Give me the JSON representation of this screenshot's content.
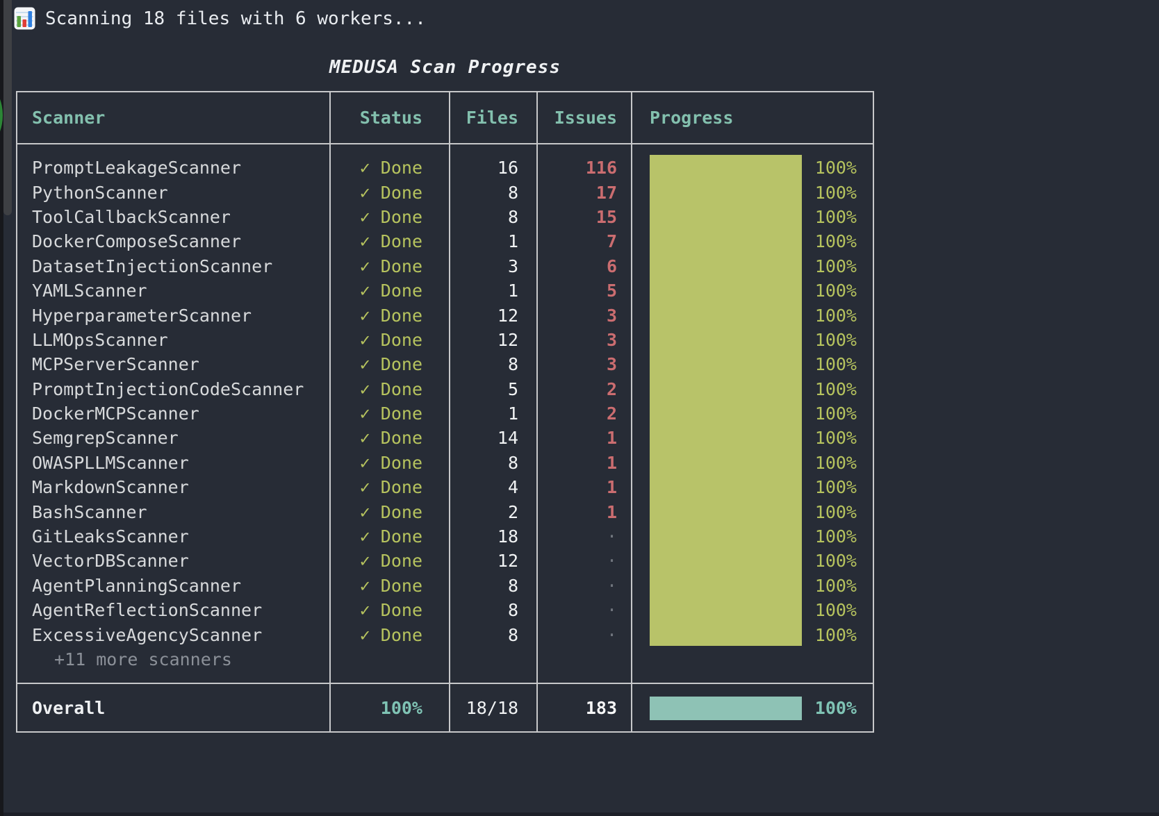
{
  "window": {
    "status_line": "Scanning 18 files with 6 workers...",
    "icon": "bar-chart-icon"
  },
  "title": "MEDUSA Scan Progress",
  "table": {
    "columns": {
      "scanner": "Scanner",
      "status": "Status",
      "files": "Files",
      "issues": "Issues",
      "progress": "Progress"
    },
    "rows": [
      {
        "scanner": "PromptLeakageScanner",
        "status": "✓ Done",
        "files": "16",
        "issues": "116",
        "progress": "100%"
      },
      {
        "scanner": "PythonScanner",
        "status": "✓ Done",
        "files": "8",
        "issues": "17",
        "progress": "100%"
      },
      {
        "scanner": "ToolCallbackScanner",
        "status": "✓ Done",
        "files": "8",
        "issues": "15",
        "progress": "100%"
      },
      {
        "scanner": "DockerComposeScanner",
        "status": "✓ Done",
        "files": "1",
        "issues": "7",
        "progress": "100%"
      },
      {
        "scanner": "DatasetInjectionScanner",
        "status": "✓ Done",
        "files": "3",
        "issues": "6",
        "progress": "100%"
      },
      {
        "scanner": "YAMLScanner",
        "status": "✓ Done",
        "files": "1",
        "issues": "5",
        "progress": "100%"
      },
      {
        "scanner": "HyperparameterScanner",
        "status": "✓ Done",
        "files": "12",
        "issues": "3",
        "progress": "100%"
      },
      {
        "scanner": "LLMOpsScanner",
        "status": "✓ Done",
        "files": "12",
        "issues": "3",
        "progress": "100%"
      },
      {
        "scanner": "MCPServerScanner",
        "status": "✓ Done",
        "files": "8",
        "issues": "3",
        "progress": "100%"
      },
      {
        "scanner": "PromptInjectionCodeScanner",
        "status": "✓ Done",
        "files": "5",
        "issues": "2",
        "progress": "100%"
      },
      {
        "scanner": "DockerMCPScanner",
        "status": "✓ Done",
        "files": "1",
        "issues": "2",
        "progress": "100%"
      },
      {
        "scanner": "SemgrepScanner",
        "status": "✓ Done",
        "files": "14",
        "issues": "1",
        "progress": "100%"
      },
      {
        "scanner": "OWASPLLMScanner",
        "status": "✓ Done",
        "files": "8",
        "issues": "1",
        "progress": "100%"
      },
      {
        "scanner": "MarkdownScanner",
        "status": "✓ Done",
        "files": "4",
        "issues": "1",
        "progress": "100%"
      },
      {
        "scanner": "BashScanner",
        "status": "✓ Done",
        "files": "2",
        "issues": "1",
        "progress": "100%"
      },
      {
        "scanner": "GitLeaksScanner",
        "status": "✓ Done",
        "files": "18",
        "issues": "·",
        "progress": "100%"
      },
      {
        "scanner": "VectorDBScanner",
        "status": "✓ Done",
        "files": "12",
        "issues": "·",
        "progress": "100%"
      },
      {
        "scanner": "AgentPlanningScanner",
        "status": "✓ Done",
        "files": "8",
        "issues": "·",
        "progress": "100%"
      },
      {
        "scanner": "AgentReflectionScanner",
        "status": "✓ Done",
        "files": "8",
        "issues": "·",
        "progress": "100%"
      },
      {
        "scanner": "ExcessiveAgencyScanner",
        "status": "✓ Done",
        "files": "8",
        "issues": "·",
        "progress": "100%"
      }
    ],
    "more_row": "+11 more scanners",
    "overall": {
      "label": "Overall",
      "status": "100%",
      "files": "18/18",
      "issues": "183",
      "progress": "100%"
    }
  },
  "colors": {
    "background": "#272c36",
    "table_border": "#c7c8ca",
    "header_text": "#83c0ae",
    "scanner_text": "#d7d9db",
    "done_text": "#b6c35e",
    "files_text": "#f1f3f4",
    "issues_text": "#cb6d70",
    "zero_issue_dot": "#70757d",
    "progress_bar": "#b8c369",
    "overall_bar": "#8ec2b5",
    "overall_accent": "#7fc3b4"
  }
}
